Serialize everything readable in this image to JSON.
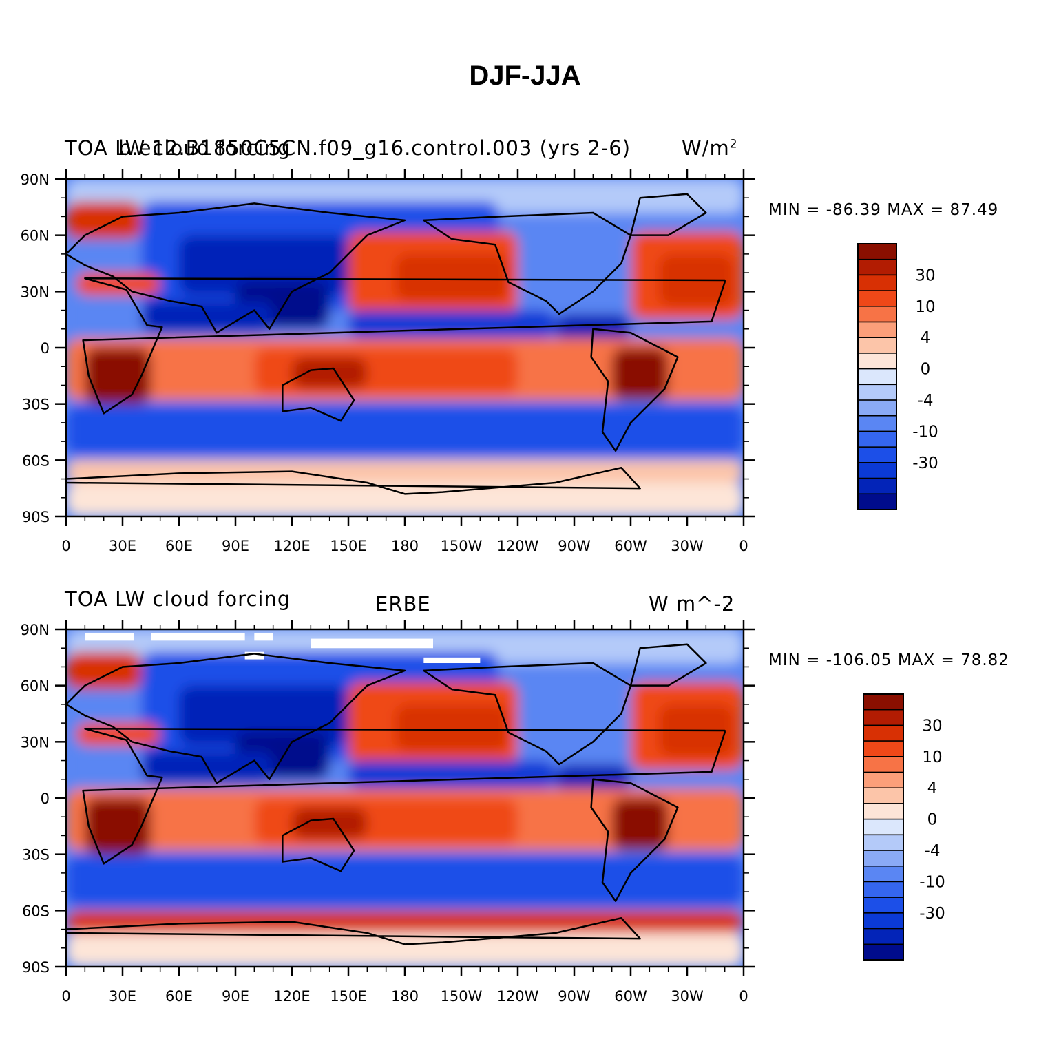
{
  "figure": {
    "title": "DJF-JJA"
  },
  "colors": {
    "levels": [
      "#000c8c",
      "#0324b8",
      "#0b3ad6",
      "#1c4fe8",
      "#3566ef",
      "#5a86f3",
      "#8aaaf6",
      "#b4caf9",
      "#dbe7fc",
      "#fde5d8",
      "#fcc5a9",
      "#fb9f7a",
      "#f77346",
      "#ef4818",
      "#d83004",
      "#b21c02",
      "#8a0f00"
    ]
  },
  "axes": {
    "lat_ticks": [
      "90N",
      "60N",
      "30N",
      "0",
      "30S",
      "60S",
      "90S"
    ],
    "lon_ticks": [
      "0",
      "30E",
      "60E",
      "90E",
      "120E",
      "150E",
      "180",
      "150W",
      "120W",
      "90W",
      "60W",
      "30W",
      "0"
    ]
  },
  "panels": [
    {
      "id": "model",
      "title_left": "TOA LW cloud forcing",
      "title_center": "b.e12.B1850C5CN.f09_g16.control.003 (yrs 2-6)",
      "title_right": "W/m",
      "title_right_sup": "2",
      "min_label": "MIN =",
      "min_value": "-86.39",
      "max_label": "MAX =",
      "max_value": "87.49",
      "colorbar_labels": [
        "30",
        "10",
        "4",
        "0",
        "-4",
        "-10",
        "-30"
      ]
    },
    {
      "id": "obs",
      "title_left": "TOA LW cloud forcing",
      "title_center": "ERBE",
      "title_right": "W m^-2",
      "title_right_sup": "",
      "min_label": "MIN =",
      "min_value": "-106.05",
      "max_label": "MAX =",
      "max_value": "78.82",
      "colorbar_labels": [
        "30",
        "10",
        "4",
        "0",
        "-4",
        "-10",
        "-30"
      ]
    }
  ]
}
